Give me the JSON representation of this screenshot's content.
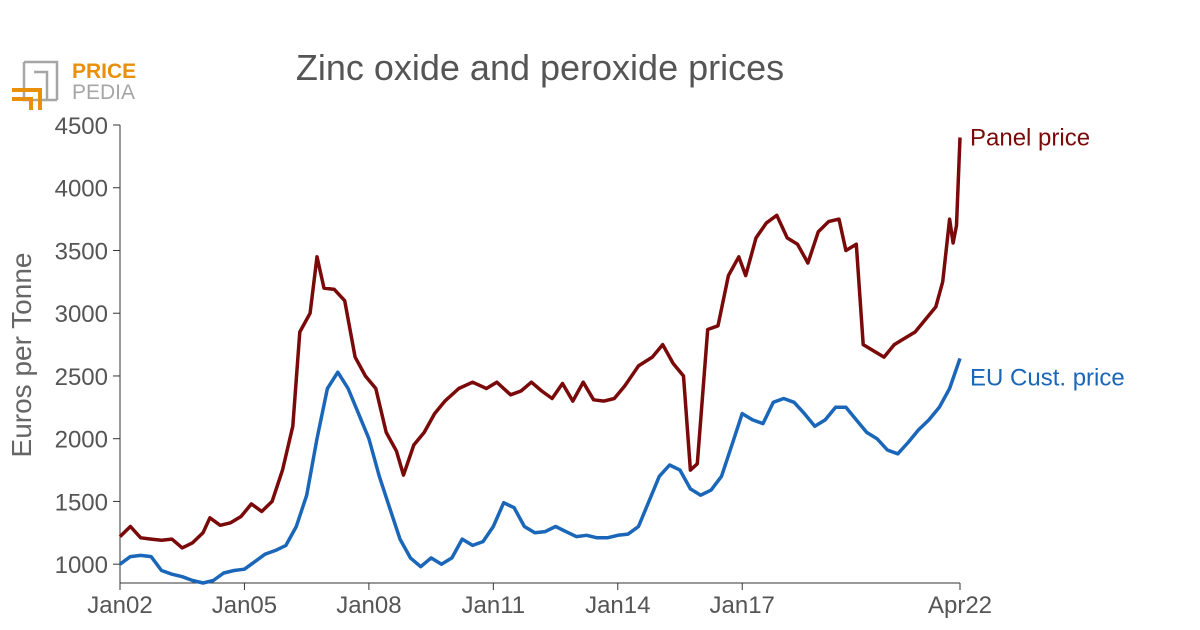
{
  "logo": {
    "line1": "PRICE",
    "line2": "PEDIA",
    "colors": {
      "accent": "#e8900c",
      "gray": "#a6a6a6"
    }
  },
  "chart_data": {
    "type": "line",
    "title": "Zinc oxide and peroxide prices",
    "ylabel": "Euros per Tonne",
    "xlabel": "",
    "x_start": "2002-01",
    "x_end": "2022-04",
    "x_ticks": [
      "Jan02",
      "Jan05",
      "Jan08",
      "Jan11",
      "Jan14",
      "Jan17",
      "Apr22"
    ],
    "ylim": [
      850,
      4500
    ],
    "y_ticks": [
      1000,
      1500,
      2000,
      2500,
      3000,
      3500,
      4000,
      4500
    ],
    "grid": false,
    "legend": "inline labels at right end of each line",
    "series": [
      {
        "name": "Panel price",
        "color": "#7a0a0a",
        "points": [
          [
            "2002-01",
            1220
          ],
          [
            "2002-04",
            1300
          ],
          [
            "2002-07",
            1210
          ],
          [
            "2002-10",
            1200
          ],
          [
            "2003-01",
            1190
          ],
          [
            "2003-04",
            1200
          ],
          [
            "2003-07",
            1130
          ],
          [
            "2003-10",
            1170
          ],
          [
            "2004-01",
            1250
          ],
          [
            "2004-03",
            1370
          ],
          [
            "2004-06",
            1310
          ],
          [
            "2004-09",
            1330
          ],
          [
            "2004-12",
            1380
          ],
          [
            "2005-03",
            1480
          ],
          [
            "2005-06",
            1420
          ],
          [
            "2005-09",
            1500
          ],
          [
            "2005-12",
            1750
          ],
          [
            "2006-03",
            2100
          ],
          [
            "2006-05",
            2850
          ],
          [
            "2006-08",
            3000
          ],
          [
            "2006-10",
            3450
          ],
          [
            "2006-12",
            3200
          ],
          [
            "2007-03",
            3190
          ],
          [
            "2007-06",
            3100
          ],
          [
            "2007-09",
            2650
          ],
          [
            "2007-12",
            2500
          ],
          [
            "2008-03",
            2400
          ],
          [
            "2008-06",
            2050
          ],
          [
            "2008-09",
            1900
          ],
          [
            "2008-11",
            1710
          ],
          [
            "2009-02",
            1950
          ],
          [
            "2009-05",
            2050
          ],
          [
            "2009-08",
            2200
          ],
          [
            "2009-11",
            2300
          ],
          [
            "2010-03",
            2400
          ],
          [
            "2010-07",
            2450
          ],
          [
            "2010-11",
            2400
          ],
          [
            "2011-02",
            2450
          ],
          [
            "2011-06",
            2350
          ],
          [
            "2011-09",
            2380
          ],
          [
            "2011-12",
            2450
          ],
          [
            "2012-03",
            2380
          ],
          [
            "2012-06",
            2320
          ],
          [
            "2012-09",
            2440
          ],
          [
            "2012-12",
            2300
          ],
          [
            "2013-03",
            2450
          ],
          [
            "2013-06",
            2310
          ],
          [
            "2013-09",
            2300
          ],
          [
            "2013-12",
            2320
          ],
          [
            "2014-03",
            2420
          ],
          [
            "2014-07",
            2580
          ],
          [
            "2014-11",
            2650
          ],
          [
            "2015-02",
            2750
          ],
          [
            "2015-05",
            2600
          ],
          [
            "2015-08",
            2500
          ],
          [
            "2015-10",
            1750
          ],
          [
            "2015-12",
            1800
          ],
          [
            "2016-03",
            2870
          ],
          [
            "2016-06",
            2900
          ],
          [
            "2016-09",
            3300
          ],
          [
            "2016-12",
            3450
          ],
          [
            "2017-02",
            3300
          ],
          [
            "2017-05",
            3600
          ],
          [
            "2017-08",
            3720
          ],
          [
            "2017-11",
            3780
          ],
          [
            "2018-02",
            3600
          ],
          [
            "2018-05",
            3550
          ],
          [
            "2018-08",
            3400
          ],
          [
            "2018-11",
            3650
          ],
          [
            "2019-02",
            3730
          ],
          [
            "2019-05",
            3750
          ],
          [
            "2019-07",
            3500
          ],
          [
            "2019-10",
            3550
          ],
          [
            "2019-12",
            2750
          ],
          [
            "2020-03",
            2700
          ],
          [
            "2020-06",
            2650
          ],
          [
            "2020-09",
            2750
          ],
          [
            "2020-12",
            2800
          ],
          [
            "2021-03",
            2850
          ],
          [
            "2021-06",
            2950
          ],
          [
            "2021-09",
            3050
          ],
          [
            "2021-11",
            3250
          ],
          [
            "2022-01",
            3750
          ],
          [
            "2022-02",
            3560
          ],
          [
            "2022-03",
            3700
          ],
          [
            "2022-04",
            4400
          ]
        ]
      },
      {
        "name": "EU Cust. price",
        "color": "#1a66b8",
        "points": [
          [
            "2002-01",
            1000
          ],
          [
            "2002-04",
            1060
          ],
          [
            "2002-07",
            1070
          ],
          [
            "2002-10",
            1060
          ],
          [
            "2003-01",
            950
          ],
          [
            "2003-04",
            920
          ],
          [
            "2003-07",
            900
          ],
          [
            "2003-10",
            870
          ],
          [
            "2004-01",
            850
          ],
          [
            "2004-04",
            870
          ],
          [
            "2004-07",
            930
          ],
          [
            "2004-10",
            950
          ],
          [
            "2005-01",
            960
          ],
          [
            "2005-04",
            1020
          ],
          [
            "2005-07",
            1080
          ],
          [
            "2005-10",
            1110
          ],
          [
            "2006-01",
            1150
          ],
          [
            "2006-04",
            1300
          ],
          [
            "2006-07",
            1550
          ],
          [
            "2006-10",
            2000
          ],
          [
            "2007-01",
            2400
          ],
          [
            "2007-04",
            2530
          ],
          [
            "2007-07",
            2400
          ],
          [
            "2007-10",
            2200
          ],
          [
            "2008-01",
            2000
          ],
          [
            "2008-04",
            1700
          ],
          [
            "2008-07",
            1450
          ],
          [
            "2008-10",
            1200
          ],
          [
            "2009-01",
            1050
          ],
          [
            "2009-04",
            980
          ],
          [
            "2009-07",
            1050
          ],
          [
            "2009-10",
            1000
          ],
          [
            "2010-01",
            1050
          ],
          [
            "2010-04",
            1200
          ],
          [
            "2010-07",
            1150
          ],
          [
            "2010-10",
            1180
          ],
          [
            "2011-01",
            1300
          ],
          [
            "2011-04",
            1490
          ],
          [
            "2011-07",
            1450
          ],
          [
            "2011-10",
            1300
          ],
          [
            "2012-01",
            1250
          ],
          [
            "2012-04",
            1260
          ],
          [
            "2012-07",
            1300
          ],
          [
            "2012-10",
            1260
          ],
          [
            "2013-01",
            1220
          ],
          [
            "2013-04",
            1230
          ],
          [
            "2013-07",
            1210
          ],
          [
            "2013-10",
            1210
          ],
          [
            "2014-01",
            1230
          ],
          [
            "2014-04",
            1240
          ],
          [
            "2014-07",
            1300
          ],
          [
            "2014-10",
            1500
          ],
          [
            "2015-01",
            1700
          ],
          [
            "2015-04",
            1790
          ],
          [
            "2015-07",
            1750
          ],
          [
            "2015-10",
            1600
          ],
          [
            "2016-01",
            1550
          ],
          [
            "2016-04",
            1590
          ],
          [
            "2016-07",
            1700
          ],
          [
            "2016-10",
            1950
          ],
          [
            "2017-01",
            2200
          ],
          [
            "2017-04",
            2150
          ],
          [
            "2017-07",
            2120
          ],
          [
            "2017-10",
            2290
          ],
          [
            "2018-01",
            2320
          ],
          [
            "2018-04",
            2290
          ],
          [
            "2018-07",
            2200
          ],
          [
            "2018-10",
            2100
          ],
          [
            "2019-01",
            2150
          ],
          [
            "2019-04",
            2250
          ],
          [
            "2019-07",
            2250
          ],
          [
            "2019-10",
            2150
          ],
          [
            "2020-01",
            2050
          ],
          [
            "2020-04",
            2000
          ],
          [
            "2020-07",
            1910
          ],
          [
            "2020-10",
            1880
          ],
          [
            "2021-01",
            1970
          ],
          [
            "2021-04",
            2070
          ],
          [
            "2021-07",
            2150
          ],
          [
            "2021-10",
            2250
          ],
          [
            "2022-01",
            2400
          ],
          [
            "2022-04",
            2640
          ]
        ]
      }
    ]
  }
}
